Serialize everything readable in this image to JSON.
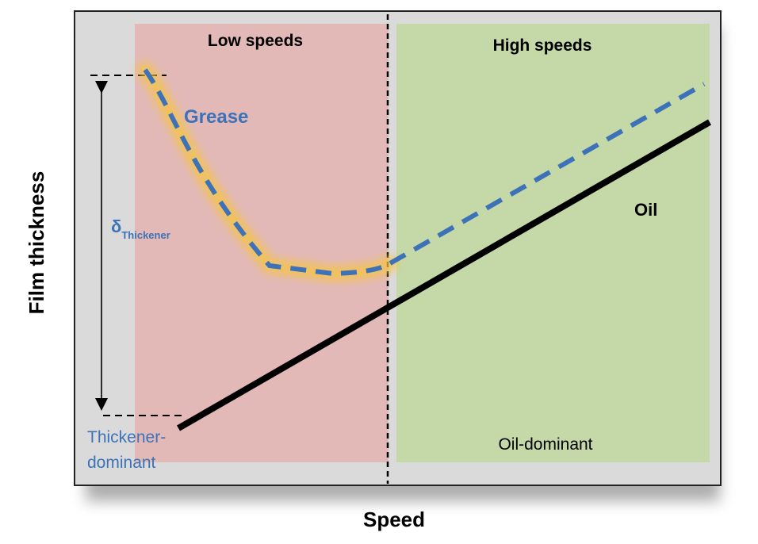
{
  "chart_data": {
    "type": "line",
    "title": "",
    "xlabel": "Speed",
    "ylabel": "Film thickness",
    "regions": [
      {
        "label": "Low speeds",
        "color": "#e2b9b6"
      },
      {
        "label": "High speeds",
        "color": "#c4d8a8"
      }
    ],
    "series": [
      {
        "name": "Grease",
        "style": "dashed",
        "color": "#3d72b8",
        "highlight": "#f5c542"
      },
      {
        "name": "Oil",
        "style": "solid",
        "color": "#000000"
      }
    ],
    "annotations": {
      "delta_symbol": "δ",
      "delta_subscript": "Thickener",
      "thickener_dominant": [
        "Thickener-",
        "dominant"
      ],
      "oil_dominant": "Oil-dominant"
    }
  },
  "colors": {
    "frame_bg": "#dadada",
    "blue_text": "#3d72b8"
  }
}
